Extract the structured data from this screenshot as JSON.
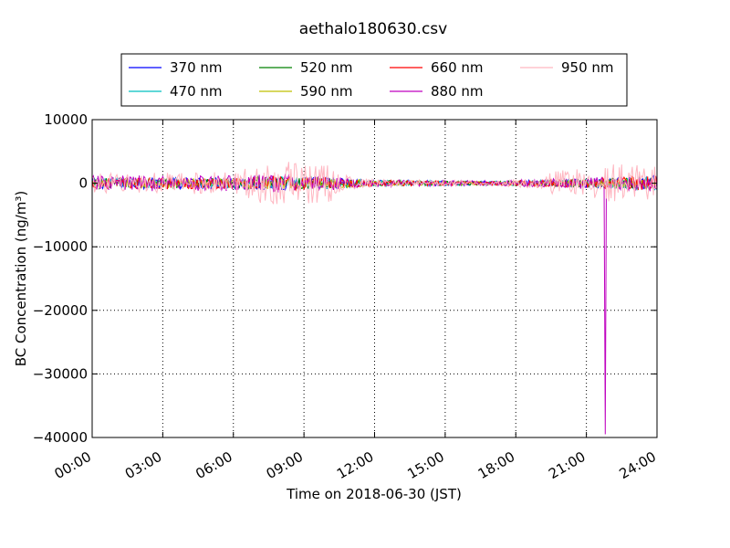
{
  "chart_data": {
    "type": "line",
    "title": "aethalo180630.csv",
    "xlabel": "Time on 2018-06-30 (JST)",
    "ylabel": "BC Concentration (ng/m³)",
    "x_range_hours": [
      0,
      24
    ],
    "ylim": [
      -40000,
      10000
    ],
    "x_ticks": [
      "00:00",
      "03:00",
      "06:00",
      "09:00",
      "12:00",
      "15:00",
      "18:00",
      "21:00",
      "24:00"
    ],
    "y_ticks": [
      "10000",
      "0",
      "−10000",
      "−20000",
      "−30000",
      "−40000"
    ],
    "grid": true,
    "legend_position": "top, above plot",
    "series": [
      {
        "name": "370 nm",
        "color": "#0000ff",
        "amp_profile": [
          [
            0,
            900
          ],
          [
            6,
            900
          ],
          [
            7,
            1200
          ],
          [
            10,
            1000
          ],
          [
            12,
            500
          ],
          [
            17,
            300
          ],
          [
            20,
            600
          ],
          [
            24,
            1200
          ]
        ]
      },
      {
        "name": "470 nm",
        "color": "#00bfbf",
        "amp_profile": [
          [
            0,
            800
          ],
          [
            6,
            800
          ],
          [
            7,
            1100
          ],
          [
            10,
            900
          ],
          [
            12,
            450
          ],
          [
            17,
            300
          ],
          [
            20,
            550
          ],
          [
            24,
            1100
          ]
        ]
      },
      {
        "name": "520 nm",
        "color": "#008000",
        "amp_profile": [
          [
            0,
            800
          ],
          [
            6,
            800
          ],
          [
            7,
            1100
          ],
          [
            10,
            900
          ],
          [
            12,
            450
          ],
          [
            17,
            300
          ],
          [
            20,
            550
          ],
          [
            24,
            1100
          ]
        ]
      },
      {
        "name": "590 nm",
        "color": "#bfbf00",
        "amp_profile": [
          [
            0,
            700
          ],
          [
            6,
            750
          ],
          [
            7,
            1000
          ],
          [
            10,
            900
          ],
          [
            12,
            400
          ],
          [
            17,
            250
          ],
          [
            20,
            500
          ],
          [
            24,
            1000
          ]
        ]
      },
      {
        "name": "660 nm",
        "color": "#ff0000",
        "amp_profile": [
          [
            0,
            900
          ],
          [
            6,
            900
          ],
          [
            7,
            1200
          ],
          [
            10,
            1000
          ],
          [
            12,
            500
          ],
          [
            17,
            300
          ],
          [
            20,
            650
          ],
          [
            24,
            1200
          ]
        ]
      },
      {
        "name": "880 nm",
        "color": "#bf00bf",
        "amp_profile": [
          [
            0,
            1200
          ],
          [
            6,
            1300
          ],
          [
            7,
            1400
          ],
          [
            10,
            1200
          ],
          [
            12,
            600
          ],
          [
            17,
            350
          ],
          [
            20,
            800
          ],
          [
            24,
            1300
          ]
        ],
        "spike": {
          "hour": 21.8,
          "value": -39500
        }
      },
      {
        "name": "950 nm",
        "color": "#ffb6c1",
        "amp_profile": [
          [
            0,
            1500
          ],
          [
            6,
            1800
          ],
          [
            7,
            3500
          ],
          [
            10,
            3200
          ],
          [
            11,
            1200
          ],
          [
            12,
            600
          ],
          [
            17,
            350
          ],
          [
            19,
            900
          ],
          [
            20,
            2500
          ],
          [
            21,
            2000
          ],
          [
            22,
            3000
          ],
          [
            24,
            3200
          ]
        ]
      }
    ]
  }
}
